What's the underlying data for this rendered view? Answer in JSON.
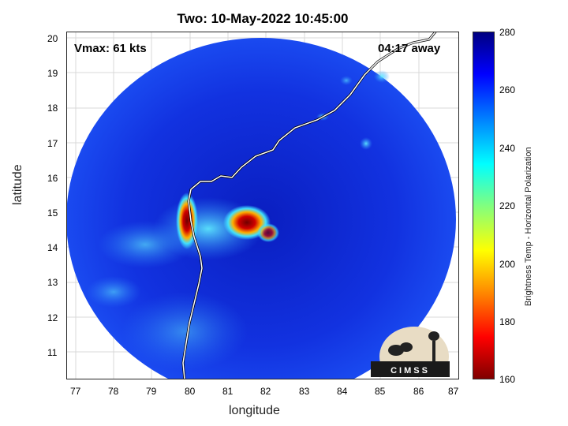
{
  "title": "Two: 10-May-2022 10:45:00",
  "vmax": "Vmax: 61 kts",
  "away": "04:17 away",
  "x_axis": {
    "label": "longitude",
    "ticks": [
      "77",
      "78",
      "79",
      "80",
      "81",
      "82",
      "83",
      "84",
      "85",
      "86",
      "87"
    ],
    "range": [
      76.7,
      87
    ]
  },
  "y_axis": {
    "label": "latitude",
    "ticks": [
      "11",
      "12",
      "13",
      "14",
      "15",
      "16",
      "17",
      "18",
      "19",
      "20"
    ],
    "range": [
      10.2,
      20.2
    ]
  },
  "colorbar": {
    "label": "Brightness Temp - Horizontal Polarization",
    "ticks": [
      "280",
      "260",
      "240",
      "220",
      "200",
      "180",
      "160"
    ],
    "range": [
      160,
      280
    ]
  },
  "logo": {
    "text": "CIMSS"
  },
  "colors": {
    "background_disk": "#1030d8",
    "coastline": "#ffffff"
  }
}
